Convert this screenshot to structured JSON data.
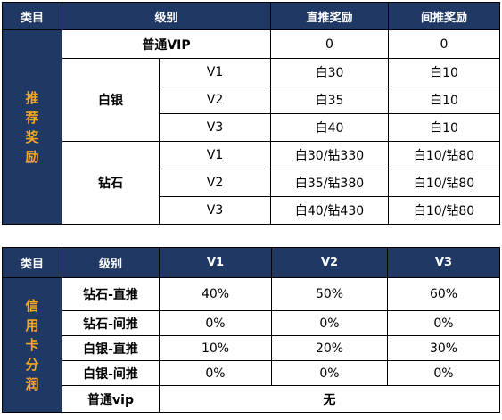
{
  "colors": {
    "header_bg": "#1f3864",
    "header_text": "#ffffff",
    "side_text": "#f5a623",
    "border": "#000000"
  },
  "table1": {
    "headers": [
      "类目",
      "级别",
      "直推奖励",
      "间推奖励"
    ],
    "side_label_chars": [
      "推",
      "荐",
      "奖",
      "励"
    ],
    "regular": {
      "label": "普通VIP",
      "direct": "0",
      "indirect": "0"
    },
    "silver": {
      "label": "白银",
      "rows": [
        {
          "level": "V1",
          "direct": "白30",
          "indirect": "白10"
        },
        {
          "level": "V2",
          "direct": "白35",
          "indirect": "白10"
        },
        {
          "level": "V3",
          "direct": "白40",
          "indirect": "白10"
        }
      ]
    },
    "diamond": {
      "label": "钻石",
      "rows": [
        {
          "level": "V1",
          "direct": "白30/钻330",
          "indirect": "白10/钻80"
        },
        {
          "level": "V2",
          "direct": "白35/钻380",
          "indirect": "白10/钻80"
        },
        {
          "level": "V3",
          "direct": "白40/钻430",
          "indirect": "白10/钻80"
        }
      ]
    }
  },
  "table2": {
    "headers": [
      "类目",
      "级别",
      "V1",
      "V2",
      "V3"
    ],
    "side_label_chars": [
      "信",
      "用",
      "卡",
      "分",
      "润"
    ],
    "rows": [
      {
        "label": "钻石-直推",
        "v1": "40%",
        "v2": "50%",
        "v3": "60%"
      },
      {
        "label": "钻石-间推",
        "v1": "0%",
        "v2": "0%",
        "v3": "0%"
      },
      {
        "label": "白银-直推",
        "v1": "10%",
        "v2": "20%",
        "v3": "30%"
      },
      {
        "label": "白银-间推",
        "v1": "0%",
        "v2": "0%",
        "v3": "0%"
      }
    ],
    "last": {
      "label": "普通vip",
      "value": "无"
    }
  }
}
